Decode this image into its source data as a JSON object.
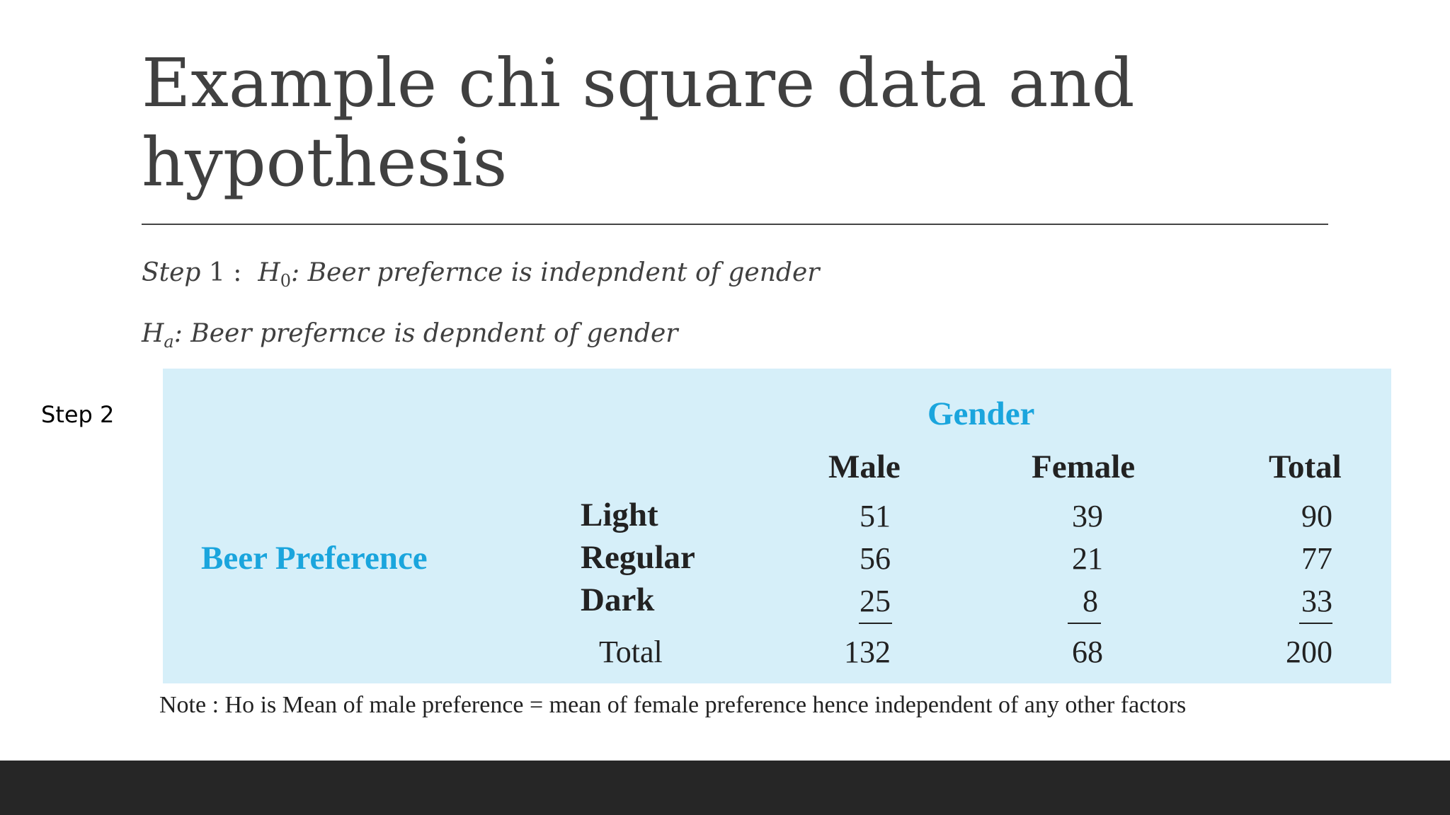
{
  "slide": {
    "title_line1": "Example chi square data and",
    "title_line2": "hypothesis"
  },
  "hypotheses": {
    "step1_label": "Step",
    "step1_number": "1",
    "h0_symbol": "H",
    "h0_subscript": "0",
    "h0_text": ": Beer prefernce is indepndent of gender",
    "ha_symbol": "H",
    "ha_subscript": "a",
    "ha_text": ": Beer prefernce is depndent of gender"
  },
  "step2_label": "Step 2",
  "table": {
    "column_group_label": "Gender",
    "row_group_label": "Beer Preference",
    "columns": [
      "Male",
      "Female",
      "Total"
    ],
    "rows": [
      {
        "label": "Light",
        "values": [
          "51",
          "39",
          "90"
        ]
      },
      {
        "label": "Regular",
        "values": [
          "56",
          "21",
          "77"
        ]
      },
      {
        "label": "Dark",
        "values": [
          "25",
          "8",
          "33"
        ]
      }
    ],
    "total_label": "Total",
    "totals": [
      "132",
      "68",
      "200"
    ]
  },
  "note": "Note : Ho  is Mean of  male preference  = mean of  female preference hence  independent of  any other factors",
  "colors": {
    "panel_background": "#d6eff9",
    "accent_blue": "#1aa5dd",
    "title_text": "#404040",
    "footer_bar": "#262626"
  }
}
